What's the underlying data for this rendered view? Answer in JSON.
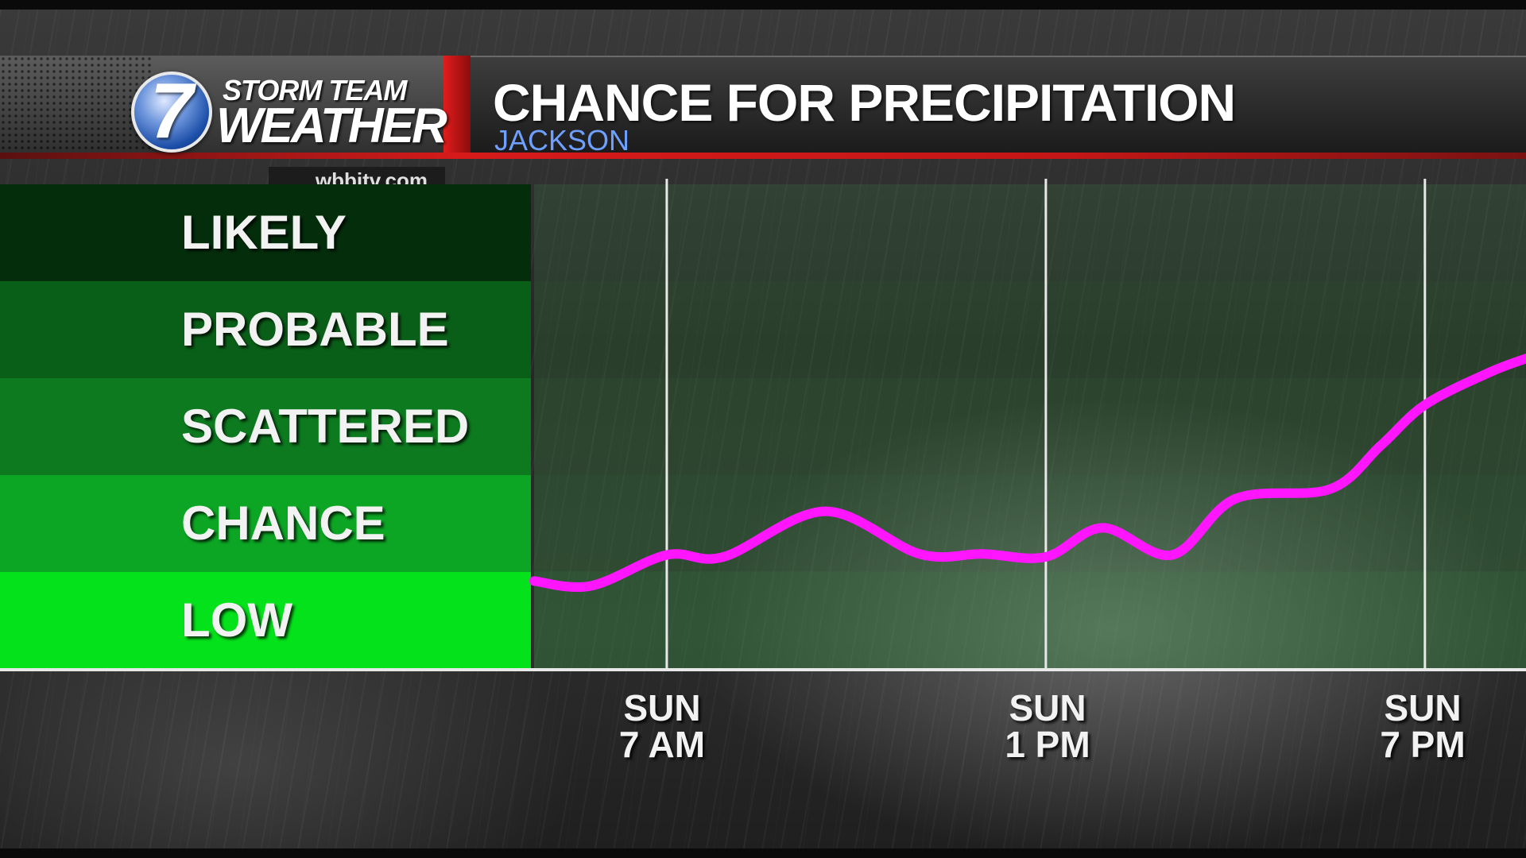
{
  "header": {
    "logo_number": "7",
    "logo_line1": "STORM TEAM",
    "logo_line2": "WEATHER",
    "website": "wbbjtv.com",
    "title": "CHANCE FOR PRECIPITATION",
    "subtitle": "JACKSON"
  },
  "colors": {
    "line": "#ff16ff",
    "accent_red": "#d61a1a",
    "subtitle_blue": "#6f9fff",
    "category_fills": [
      "#042e0b",
      "#0a5f18",
      "#0d7a1f",
      "#0ca624",
      "#04e21b"
    ]
  },
  "chart_data": {
    "type": "line",
    "title": "CHANCE FOR PRECIPITATION",
    "subtitle": "JACKSON",
    "y_categories": [
      "LIKELY",
      "PROBABLE",
      "SCATTERED",
      "CHANCE",
      "LOW"
    ],
    "x_ticks": [
      {
        "day": "SUN",
        "time": "7 AM",
        "hour": 7
      },
      {
        "day": "SUN",
        "time": "1 PM",
        "hour": 13
      },
      {
        "day": "SUN",
        "time": "7 PM",
        "hour": 19
      }
    ],
    "xlim": [
      4.9,
      20.6
    ],
    "ylim": [
      0,
      5
    ],
    "grid": true,
    "series": [
      {
        "values": [
          {
            "x": 4.9,
            "y": 0.9
          },
          {
            "x": 5.8,
            "y": 0.85
          },
          {
            "x": 7.0,
            "y": 1.17
          },
          {
            "x": 7.9,
            "y": 1.15
          },
          {
            "x": 9.5,
            "y": 1.62
          },
          {
            "x": 11.0,
            "y": 1.18
          },
          {
            "x": 12.0,
            "y": 1.18
          },
          {
            "x": 13.0,
            "y": 1.15
          },
          {
            "x": 13.9,
            "y": 1.45
          },
          {
            "x": 15.0,
            "y": 1.17
          },
          {
            "x": 16.0,
            "y": 1.75
          },
          {
            "x": 17.5,
            "y": 1.85
          },
          {
            "x": 18.3,
            "y": 2.3
          },
          {
            "x": 19.0,
            "y": 2.72
          },
          {
            "x": 20.0,
            "y": 3.05
          },
          {
            "x": 20.6,
            "y": 3.2
          }
        ]
      }
    ]
  }
}
